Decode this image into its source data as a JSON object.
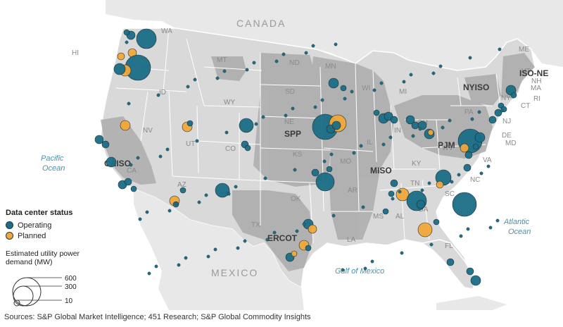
{
  "labels": {
    "countries": [
      "CANADA",
      "MEXICO"
    ],
    "water": [
      "Pacific Ocean",
      "Atlantic Ocean",
      "Gulf of Mexico"
    ],
    "states": [
      "WA",
      "OR",
      "ID",
      "MT",
      "WY",
      "NV",
      "UT",
      "CO",
      "CA",
      "AZ",
      "NM",
      "TX",
      "OK",
      "KS",
      "NE",
      "SD",
      "ND",
      "MN",
      "IA",
      "MO",
      "AR",
      "LA",
      "WI",
      "IL",
      "MI",
      "IN",
      "OH",
      "KY",
      "TN",
      "MS",
      "AL",
      "GA",
      "FL",
      "SC",
      "NC",
      "VA",
      "WV",
      "PA",
      "NY",
      "VT",
      "NH",
      "ME",
      "MA",
      "RI",
      "CT",
      "NJ",
      "DE",
      "MD",
      "HI"
    ],
    "regions": [
      "CAISO",
      "SPP",
      "MISO",
      "ERCOT",
      "PJM",
      "NYISO",
      "ISO-NE"
    ]
  },
  "legend": {
    "title": "Data center status",
    "operating_label": "Operating",
    "planned_label": "Planned",
    "size_title": "Estimated utility power demand (MW)",
    "size_values": [
      "600",
      "300",
      "10"
    ]
  },
  "source": "Sources: S&P Global Market Intelligence; 451 Research; S&P Global Commodity Insights",
  "colors": {
    "operating": "#1a6e87",
    "planned": "#f0a83a",
    "land": "#dedede",
    "water": "#ffffff",
    "region": "#a9a9a9"
  }
}
